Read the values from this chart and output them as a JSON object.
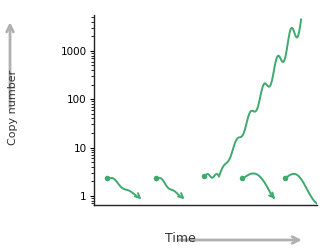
{
  "line_color": "#3daa6e",
  "background_color": "#ffffff",
  "ylabel": "Copy number",
  "xlabel": "Time",
  "dot_size": 4,
  "line_width": 1.4,
  "gray_arrow_color": "#b0b0b0",
  "figsize": [
    3.34,
    2.5
  ],
  "dpi": 100
}
